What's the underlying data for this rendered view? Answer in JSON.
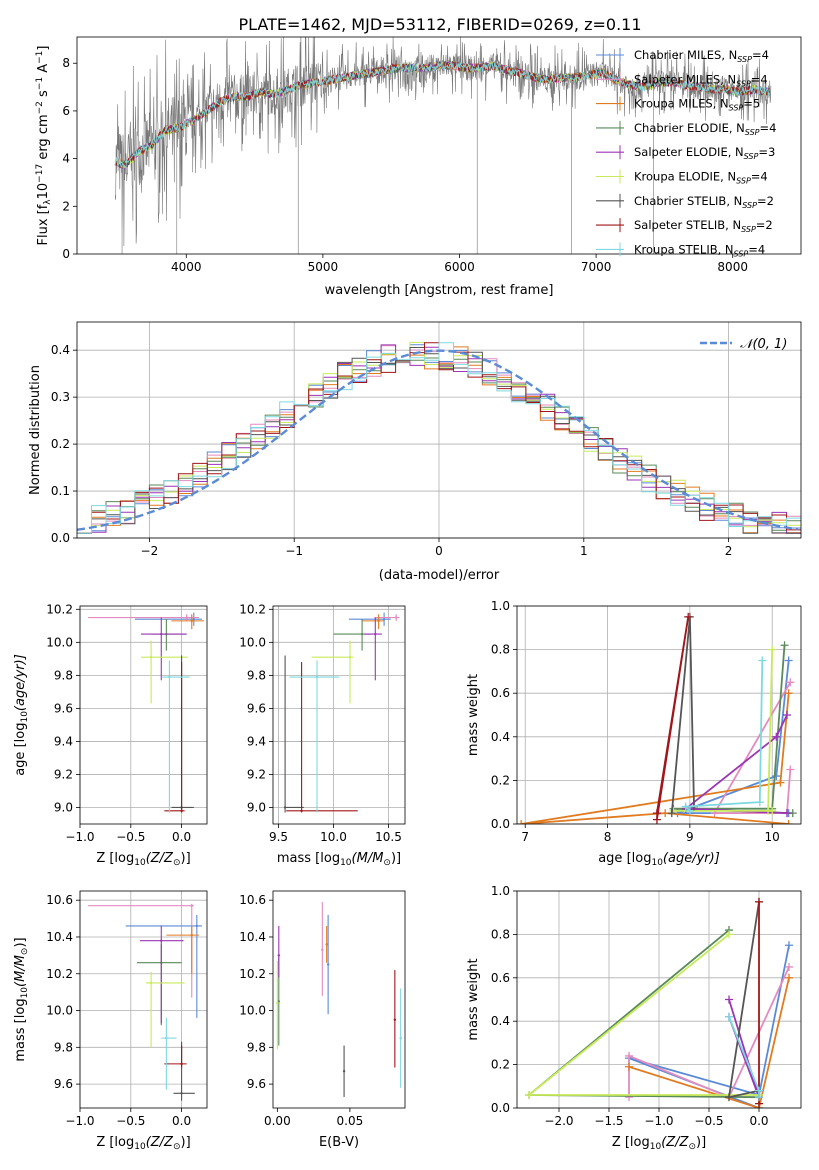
{
  "figure_title": "PLATE=1462, MJD=53112, FIBERID=0269, z=0.11",
  "colors": {
    "Chabrier MILES": "#5b8bd6",
    "Salpeter MILES": "#e38bbf",
    "Kroupa MILES": "#e07b20",
    "Chabrier ELODIE": "#5a8a5a",
    "Salpeter ELODIE": "#9b35b5",
    "Kroupa ELODIE": "#c8ea5a",
    "Chabrier STELIB": "#555555",
    "Salpeter STELIB": "#a0161a",
    "Kroupa STELIB": "#7dd9df"
  },
  "chart_data": [
    {
      "id": "spectrum",
      "type": "line",
      "xlabel": "wavelength [Angstrom, rest frame]",
      "ylabel": "Flux [f",
      "ylabel_parts": [
        "Flux [f",
        "λ",
        "10",
        "−17",
        " erg cm",
        "−2",
        " s",
        "−1",
        " A",
        "−1",
        "]"
      ],
      "xlim": [
        3200,
        8500
      ],
      "ylim": [
        0,
        9.1
      ],
      "xticks": [
        4000,
        5000,
        6000,
        7000,
        8000
      ],
      "yticks": [
        0,
        2,
        4,
        6,
        8
      ],
      "grid": false,
      "legend_position": "upper-right",
      "legend": [
        {
          "label": "Chabrier MILES, N",
          "sub": "SSP",
          "suffix": "=4"
        },
        {
          "label": "Salpeter MILES, N",
          "sub": "SSP",
          "suffix": "=4"
        },
        {
          "label": "Kroupa MILES, N",
          "sub": "SSP",
          "suffix": "=5"
        },
        {
          "label": "Chabrier ELODIE, N",
          "sub": "SSP",
          "suffix": "=4"
        },
        {
          "label": "Salpeter ELODIE, N",
          "sub": "SSP",
          "suffix": "=3"
        },
        {
          "label": "Kroupa ELODIE, N",
          "sub": "SSP",
          "suffix": "=4"
        },
        {
          "label": "Chabrier STELIB, N",
          "sub": "SSP",
          "suffix": "=2"
        },
        {
          "label": "Salpeter STELIB, N",
          "sub": "SSP",
          "suffix": "=2"
        },
        {
          "label": "Kroupa STELIB, N",
          "sub": "SSP",
          "suffix": "=4"
        }
      ],
      "model_x": [
        3480,
        3550,
        3650,
        3750,
        3850,
        3950,
        4050,
        4150,
        4250,
        4350,
        4450,
        4550,
        4650,
        4750,
        4850,
        4950,
        5050,
        5150,
        5250,
        5350,
        5450,
        5550,
        5650,
        5750,
        5850,
        5950,
        6050,
        6150,
        6250,
        6350,
        6450,
        6550,
        6650,
        6750,
        6850,
        6950,
        7050,
        7150,
        7250,
        7350,
        7450,
        7550,
        7650,
        7750,
        7850,
        7950,
        8050,
        8150,
        8270
      ],
      "model_y": [
        3.9,
        3.7,
        4.3,
        4.6,
        5.2,
        5.3,
        5.6,
        6.0,
        6.4,
        6.6,
        6.6,
        6.8,
        6.7,
        6.9,
        7.1,
        7.2,
        7.3,
        7.4,
        7.5,
        7.6,
        7.7,
        7.8,
        7.8,
        7.8,
        7.9,
        7.9,
        7.8,
        7.8,
        7.9,
        7.7,
        7.6,
        7.4,
        7.3,
        7.4,
        7.4,
        7.5,
        7.6,
        7.3,
        7.1,
        7.0,
        7.2,
        7.2,
        7.1,
        7.0,
        6.9,
        6.9,
        6.8,
        6.9,
        6.8
      ],
      "data_dropouts": [
        3530,
        3930,
        4820,
        6130,
        6820,
        7420
      ]
    },
    {
      "id": "residual-histogram",
      "type": "bar",
      "xlabel": "(data-model)/error",
      "ylabel": "Normed distribution",
      "xlim": [
        -2.5,
        2.5
      ],
      "ylim": [
        0,
        0.46
      ],
      "xticks": [
        -2,
        -1,
        0,
        1,
        2
      ],
      "yticks": [
        0.0,
        0.1,
        0.2,
        0.3,
        0.4
      ],
      "grid": true,
      "legend_position": "upper-right",
      "legend": [
        {
          "label": "𝒩(0, 1)"
        }
      ],
      "bin_width": 0.1,
      "bin_start": -2.5,
      "reference": "normal-pdf"
    },
    {
      "id": "age-vs-Z",
      "type": "scatter",
      "xlabel": "Z [log",
      "ylabel": "age  [log",
      "xlabel_parts": [
        "Z [log",
        "10",
        "(Z/Z",
        "⊙",
        ")]"
      ],
      "ylabel_parts": [
        "age  [log",
        "10",
        "(age/yr)]"
      ],
      "xlim": [
        -1.0,
        0.25
      ],
      "ylim": [
        8.9,
        10.22
      ],
      "xticks": [
        -1.0,
        -0.5,
        0.0
      ],
      "yticks": [
        9.0,
        9.2,
        9.4,
        9.6,
        9.8,
        10.0,
        10.2
      ],
      "grid": true,
      "points": [
        {
          "series": "Chabrier MILES",
          "x": 0.12,
          "xerr": [
            0.58,
            0.08
          ],
          "y": 10.14,
          "yerr": [
            0.04,
            0.04
          ]
        },
        {
          "series": "Salpeter MILES",
          "x": 0.05,
          "xerr": [
            0.97,
            0.12
          ],
          "y": 10.15,
          "yerr": [
            0.02,
            0.02
          ]
        },
        {
          "series": "Kroupa MILES",
          "x": 0.1,
          "xerr": [
            0.2,
            0.12
          ],
          "y": 10.13,
          "yerr": [
            0.05,
            0.04
          ]
        },
        {
          "series": "Chabrier ELODIE",
          "x": -0.15,
          "xerr": [
            0.15,
            0.2
          ],
          "y": 10.05,
          "yerr": [
            0.1,
            0.09
          ]
        },
        {
          "series": "Salpeter ELODIE",
          "x": -0.2,
          "xerr": [
            0.2,
            0.25
          ],
          "y": 10.05,
          "yerr": [
            0.28,
            0.1
          ]
        },
        {
          "series": "Kroupa ELODIE",
          "x": -0.3,
          "xerr": [
            0.1,
            0.36
          ],
          "y": 9.91,
          "yerr": [
            0.28,
            0.1
          ]
        },
        {
          "series": "Chabrier STELIB",
          "x": 0.0,
          "xerr": [
            0.1,
            0.12
          ],
          "y": 9.0,
          "yerr": [
            0.03,
            0.92
          ]
        },
        {
          "series": "Salpeter STELIB",
          "x": 0.0,
          "xerr": [
            0.17,
            0.03
          ],
          "y": 8.98,
          "yerr": [
            0.01,
            0.9
          ]
        },
        {
          "series": "Kroupa STELIB",
          "x": -0.12,
          "xerr": [
            0.07,
            0.2
          ],
          "y": 9.79,
          "yerr": [
            0.82,
            0.1
          ]
        }
      ]
    },
    {
      "id": "age-vs-mass",
      "type": "scatter",
      "xlabel": "mass [log",
      "xlabel_parts": [
        "mass [log",
        "10",
        "(M/M",
        "⊙",
        ")]"
      ],
      "xlim": [
        9.45,
        10.65
      ],
      "ylim": [
        8.9,
        10.22
      ],
      "xticks": [
        9.5,
        10.0,
        10.5
      ],
      "yticks": [
        9.0,
        9.2,
        9.4,
        9.6,
        9.8,
        10.0,
        10.2
      ],
      "grid": true,
      "points": [
        {
          "series": "Chabrier MILES",
          "x": 10.46,
          "xerr": [
            0.32,
            0.06
          ],
          "y": 10.14,
          "yerr": [
            0.04,
            0.04
          ]
        },
        {
          "series": "Salpeter MILES",
          "x": 10.57,
          "xerr": [
            0.2,
            0.03
          ],
          "y": 10.15,
          "yerr": [
            0.02,
            0.02
          ]
        },
        {
          "series": "Kroupa MILES",
          "x": 10.41,
          "xerr": [
            0.15,
            0.05
          ],
          "y": 10.13,
          "yerr": [
            0.05,
            0.04
          ]
        },
        {
          "series": "Chabrier ELODIE",
          "x": 10.26,
          "xerr": [
            0.26,
            0.08
          ],
          "y": 10.05,
          "yerr": [
            0.1,
            0.09
          ]
        },
        {
          "series": "Salpeter ELODIE",
          "x": 10.38,
          "xerr": [
            0.1,
            0.06
          ],
          "y": 10.05,
          "yerr": [
            0.28,
            0.1
          ]
        },
        {
          "series": "Kroupa ELODIE",
          "x": 10.15,
          "xerr": [
            0.35,
            0.03
          ],
          "y": 9.91,
          "yerr": [
            0.28,
            0.1
          ]
        },
        {
          "series": "Chabrier STELIB",
          "x": 9.56,
          "xerr": [
            0.01,
            0.17
          ],
          "y": 9.0,
          "yerr": [
            0.03,
            0.92
          ]
        },
        {
          "series": "Salpeter STELIB",
          "x": 9.71,
          "xerr": [
            0.14,
            0.51
          ],
          "y": 8.98,
          "yerr": [
            0.01,
            0.9
          ]
        },
        {
          "series": "Kroupa STELIB",
          "x": 9.85,
          "xerr": [
            0.25,
            0.2
          ],
          "y": 9.79,
          "yerr": [
            0.82,
            0.1
          ]
        }
      ]
    },
    {
      "id": "mass-weight-vs-age",
      "type": "line",
      "xlabel": "age  [log",
      "xlabel_parts": [
        "age  [log",
        "10",
        "(age/yr)]"
      ],
      "ylabel": "mass weight",
      "xlim": [
        6.9,
        10.35
      ],
      "ylim": [
        0,
        1.0
      ],
      "xticks": [
        7,
        8,
        9,
        10
      ],
      "yticks": [
        0.0,
        0.2,
        0.4,
        0.6,
        0.8,
        1.0
      ],
      "grid": true,
      "series": [
        {
          "name": "Chabrier MILES",
          "x": [
            10.2,
            10.05,
            8.85,
            10.2
          ],
          "y": [
            0.75,
            0.22,
            0.05,
            0.05
          ]
        },
        {
          "name": "Salpeter MILES",
          "x": [
            10.22,
            9.3,
            10.18,
            10.22
          ],
          "y": [
            0.65,
            0.05,
            0.05,
            0.25
          ]
        },
        {
          "name": "Kroupa MILES",
          "x": [
            10.2,
            10.1,
            6.95,
            8.7,
            10.2
          ],
          "y": [
            0.6,
            0.19,
            0.0,
            0.05,
            0.0
          ]
        },
        {
          "name": "Chabrier ELODIE",
          "x": [
            10.15,
            10.0,
            8.8,
            10.25
          ],
          "y": [
            0.82,
            0.07,
            0.07,
            0.05
          ]
        },
        {
          "name": "Salpeter ELODIE",
          "x": [
            10.18,
            10.05,
            8.95,
            10.18
          ],
          "y": [
            0.5,
            0.4,
            0.07,
            0.05
          ]
        },
        {
          "name": "Kroupa ELODIE",
          "x": [
            10.0,
            9.95,
            8.8,
            10.0
          ],
          "y": [
            0.8,
            0.06,
            0.06,
            0.06
          ]
        },
        {
          "name": "Chabrier STELIB",
          "x": [
            8.78,
            9.0,
            9.05
          ],
          "y": [
            0.05,
            0.95,
            0.08
          ]
        },
        {
          "name": "Salpeter STELIB",
          "x": [
            8.6,
            8.98,
            8.6
          ],
          "y": [
            0.05,
            0.95,
            0.02
          ]
        },
        {
          "name": "Kroupa STELIB",
          "x": [
            9.88,
            9.85,
            8.95,
            9.0
          ],
          "y": [
            0.75,
            0.1,
            0.08,
            0.06
          ]
        }
      ]
    },
    {
      "id": "mass-vs-Z",
      "type": "scatter",
      "xlabel": "Z [log",
      "ylabel": "mass [log",
      "xlabel_parts": [
        "Z [log",
        "10",
        "(Z/Z",
        "⊙",
        ")]"
      ],
      "ylabel_parts": [
        "mass [log",
        "10",
        "(M/M",
        "⊙",
        ")]"
      ],
      "xlim": [
        -1.0,
        0.25
      ],
      "ylim": [
        9.47,
        10.65
      ],
      "xticks": [
        -1.0,
        -0.5,
        0.0
      ],
      "yticks": [
        9.6,
        9.8,
        10.0,
        10.2,
        10.4,
        10.6
      ],
      "grid": true,
      "points": [
        {
          "series": "Chabrier MILES",
          "x": 0.15,
          "xerr": [
            0.7,
            0.05
          ],
          "y": 10.46,
          "yerr": [
            0.5,
            0.06
          ]
        },
        {
          "series": "Salpeter MILES",
          "x": 0.1,
          "xerr": [
            1.02,
            0.02
          ],
          "y": 10.57,
          "yerr": [
            0.5,
            0.01
          ]
        },
        {
          "series": "Kroupa MILES",
          "x": 0.1,
          "xerr": [
            0.25,
            0.07
          ],
          "y": 10.41,
          "yerr": [
            0.21,
            0.05
          ]
        },
        {
          "series": "Chabrier ELODIE",
          "x": -0.2,
          "xerr": [
            0.24,
            0.2
          ],
          "y": 10.26,
          "yerr": [
            0.34,
            0.1
          ]
        },
        {
          "series": "Salpeter ELODIE",
          "x": -0.2,
          "xerr": [
            0.21,
            0.22
          ],
          "y": 10.38,
          "yerr": [
            0.45,
            0.08
          ]
        },
        {
          "series": "Kroupa ELODIE",
          "x": -0.3,
          "xerr": [
            0.05,
            0.33
          ],
          "y": 10.15,
          "yerr": [
            0.35,
            0.06
          ]
        },
        {
          "series": "Chabrier STELIB",
          "x": 0.0,
          "xerr": [
            0.08,
            0.13
          ],
          "y": 9.55,
          "yerr": [
            0.04,
            0.28
          ]
        },
        {
          "series": "Salpeter STELIB",
          "x": 0.0,
          "xerr": [
            0.17,
            0.05
          ],
          "y": 9.71,
          "yerr": [
            0.02,
            0.1
          ]
        },
        {
          "series": "Kroupa STELIB",
          "x": -0.15,
          "xerr": [
            0.05,
            0.1
          ],
          "y": 9.85,
          "yerr": [
            0.28,
            0.11
          ]
        }
      ]
    },
    {
      "id": "mass-vs-EBV",
      "type": "scatter",
      "xlabel": "E(B-V)",
      "xlim": [
        -0.003,
        0.088
      ],
      "ylim": [
        9.47,
        10.65
      ],
      "xticks": [
        0.0,
        0.05
      ],
      "yticks": [
        9.6,
        9.8,
        10.0,
        10.2,
        10.4,
        10.6
      ],
      "grid": false,
      "points": [
        {
          "series": "Chabrier MILES",
          "x": 0.035,
          "y": 10.25,
          "yerr": [
            0.27,
            0.27
          ]
        },
        {
          "series": "Salpeter MILES",
          "x": 0.031,
          "y": 10.33,
          "yerr": [
            0.25,
            0.26
          ]
        },
        {
          "series": "Kroupa MILES",
          "x": 0.034,
          "y": 10.36,
          "yerr": [
            0.1,
            0.1
          ]
        },
        {
          "series": "Chabrier ELODIE",
          "x": 0.001,
          "y": 10.05,
          "yerr": [
            0.24,
            0.24
          ]
        },
        {
          "series": "Salpeter ELODIE",
          "x": 0.001,
          "y": 10.3,
          "yerr": [
            0.12,
            0.16
          ]
        },
        {
          "series": "Kroupa ELODIE",
          "x": 0.0,
          "y": 10.04,
          "yerr": [
            0.25,
            0.23
          ]
        },
        {
          "series": "Chabrier STELIB",
          "x": 0.046,
          "y": 9.67,
          "yerr": [
            0.14,
            0.14
          ]
        },
        {
          "series": "Salpeter STELIB",
          "x": 0.081,
          "y": 9.95,
          "yerr": [
            0.26,
            0.27
          ]
        },
        {
          "series": "Kroupa STELIB",
          "x": 0.085,
          "y": 9.85,
          "yerr": [
            0.27,
            0.27
          ]
        }
      ]
    },
    {
      "id": "mass-weight-vs-Z",
      "type": "line",
      "xlabel": "Z [log",
      "xlabel_parts": [
        "Z [log",
        "10",
        "(Z/Z",
        "⊙",
        ")]"
      ],
      "ylabel": "mass weight",
      "xlim": [
        -2.42,
        0.42
      ],
      "ylim": [
        0,
        1.0
      ],
      "xticks": [
        -2.0,
        -1.5,
        -1.0,
        -0.5,
        0.0
      ],
      "yticks": [
        0.0,
        0.2,
        0.4,
        0.6,
        0.8,
        1.0
      ],
      "grid": true,
      "series": [
        {
          "name": "Chabrier MILES",
          "x": [
            0.3,
            0.0,
            -1.3,
            0.0
          ],
          "y": [
            0.75,
            0.06,
            0.23,
            0.0
          ]
        },
        {
          "name": "Salpeter MILES",
          "x": [
            0.3,
            -0.3,
            -1.3,
            -1.3
          ],
          "y": [
            0.65,
            0.05,
            0.24,
            0.05
          ]
        },
        {
          "name": "Kroupa MILES",
          "x": [
            0.3,
            0.0,
            -1.3,
            0.0
          ],
          "y": [
            0.6,
            0.0,
            0.19,
            0.0
          ]
        },
        {
          "name": "Chabrier ELODIE",
          "x": [
            -0.3,
            -2.3,
            0.0
          ],
          "y": [
            0.82,
            0.06,
            0.05
          ]
        },
        {
          "name": "Salpeter ELODIE",
          "x": [
            -0.3,
            0.0,
            -0.3
          ],
          "y": [
            0.5,
            0.05,
            0.42
          ]
        },
        {
          "name": "Kroupa ELODIE",
          "x": [
            -0.3,
            -2.3,
            0.0
          ],
          "y": [
            0.8,
            0.06,
            0.06
          ]
        },
        {
          "name": "Chabrier STELIB",
          "x": [
            0.0,
            -0.3,
            0.0
          ],
          "y": [
            0.95,
            0.05,
            0.08
          ]
        },
        {
          "name": "Salpeter STELIB",
          "x": [
            0.0,
            0.0
          ],
          "y": [
            0.95,
            0.02
          ]
        },
        {
          "name": "Kroupa STELIB",
          "x": [
            -0.3,
            0.0,
            0.0
          ],
          "y": [
            0.42,
            0.08,
            0.05
          ]
        }
      ]
    }
  ]
}
